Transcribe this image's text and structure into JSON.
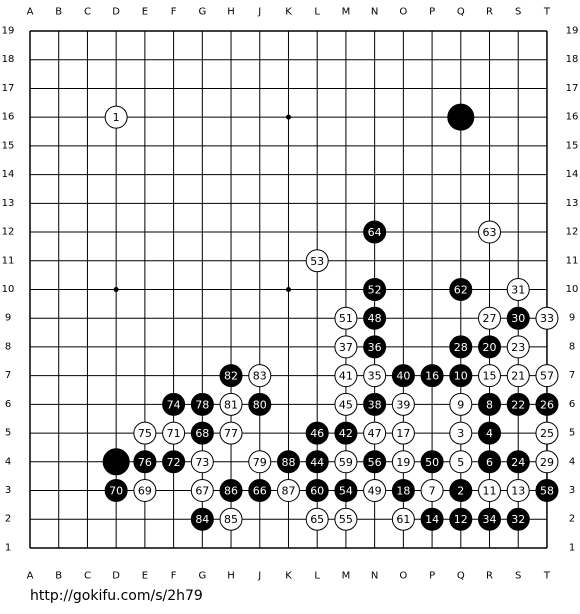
{
  "board": {
    "columns": [
      "A",
      "B",
      "C",
      "D",
      "E",
      "F",
      "G",
      "H",
      "J",
      "K",
      "L",
      "M",
      "N",
      "O",
      "P",
      "Q",
      "R",
      "S",
      "T"
    ],
    "rows": [
      19,
      18,
      17,
      16,
      15,
      14,
      13,
      12,
      11,
      10,
      9,
      8,
      7,
      6,
      5,
      4,
      3,
      2,
      1
    ],
    "stones": [
      {
        "col": "D",
        "row": 16,
        "color": "white",
        "label": "1"
      },
      {
        "col": "Q",
        "row": 16,
        "color": "black"
      },
      {
        "col": "N",
        "row": 12,
        "color": "black",
        "label": "64"
      },
      {
        "col": "R",
        "row": 12,
        "color": "white",
        "label": "63"
      },
      {
        "col": "L",
        "row": 11,
        "color": "white",
        "label": "53"
      },
      {
        "col": "N",
        "row": 10,
        "color": "black",
        "label": "52"
      },
      {
        "col": "Q",
        "row": 10,
        "color": "black",
        "label": "62"
      },
      {
        "col": "S",
        "row": 10,
        "color": "white",
        "label": "31"
      },
      {
        "col": "M",
        "row": 9,
        "color": "white",
        "label": "51"
      },
      {
        "col": "N",
        "row": 9,
        "color": "black",
        "label": "48"
      },
      {
        "col": "R",
        "row": 9,
        "color": "white",
        "label": "27"
      },
      {
        "col": "S",
        "row": 9,
        "color": "black",
        "label": "30"
      },
      {
        "col": "T",
        "row": 9,
        "color": "white",
        "label": "33"
      },
      {
        "col": "M",
        "row": 8,
        "color": "white",
        "label": "37"
      },
      {
        "col": "N",
        "row": 8,
        "color": "black",
        "label": "36"
      },
      {
        "col": "Q",
        "row": 8,
        "color": "black",
        "label": "28"
      },
      {
        "col": "R",
        "row": 8,
        "color": "black",
        "label": "20"
      },
      {
        "col": "S",
        "row": 8,
        "color": "white",
        "label": "23"
      },
      {
        "col": "H",
        "row": 7,
        "color": "black",
        "label": "82"
      },
      {
        "col": "J",
        "row": 7,
        "color": "white",
        "label": "83"
      },
      {
        "col": "M",
        "row": 7,
        "color": "white",
        "label": "41"
      },
      {
        "col": "N",
        "row": 7,
        "color": "white",
        "label": "35"
      },
      {
        "col": "O",
        "row": 7,
        "color": "black",
        "label": "40"
      },
      {
        "col": "P",
        "row": 7,
        "color": "black",
        "label": "16"
      },
      {
        "col": "Q",
        "row": 7,
        "color": "black",
        "label": "10"
      },
      {
        "col": "R",
        "row": 7,
        "color": "white",
        "label": "15"
      },
      {
        "col": "S",
        "row": 7,
        "color": "white",
        "label": "21"
      },
      {
        "col": "T",
        "row": 7,
        "color": "white",
        "label": "57"
      },
      {
        "col": "F",
        "row": 6,
        "color": "black",
        "label": "74"
      },
      {
        "col": "G",
        "row": 6,
        "color": "black",
        "label": "78"
      },
      {
        "col": "H",
        "row": 6,
        "color": "white",
        "label": "81"
      },
      {
        "col": "J",
        "row": 6,
        "color": "black",
        "label": "80"
      },
      {
        "col": "M",
        "row": 6,
        "color": "white",
        "label": "45"
      },
      {
        "col": "N",
        "row": 6,
        "color": "black",
        "label": "38"
      },
      {
        "col": "O",
        "row": 6,
        "color": "white",
        "label": "39"
      },
      {
        "col": "Q",
        "row": 6,
        "color": "white",
        "label": "9"
      },
      {
        "col": "R",
        "row": 6,
        "color": "black",
        "label": "8"
      },
      {
        "col": "S",
        "row": 6,
        "color": "black",
        "label": "22"
      },
      {
        "col": "T",
        "row": 6,
        "color": "black",
        "label": "26"
      },
      {
        "col": "E",
        "row": 5,
        "color": "white",
        "label": "75"
      },
      {
        "col": "F",
        "row": 5,
        "color": "white",
        "label": "71"
      },
      {
        "col": "G",
        "row": 5,
        "color": "black",
        "label": "68"
      },
      {
        "col": "H",
        "row": 5,
        "color": "white",
        "label": "77"
      },
      {
        "col": "L",
        "row": 5,
        "color": "black",
        "label": "46"
      },
      {
        "col": "M",
        "row": 5,
        "color": "black",
        "label": "42"
      },
      {
        "col": "N",
        "row": 5,
        "color": "white",
        "label": "47"
      },
      {
        "col": "O",
        "row": 5,
        "color": "white",
        "label": "17"
      },
      {
        "col": "Q",
        "row": 5,
        "color": "white",
        "label": "3"
      },
      {
        "col": "R",
        "row": 5,
        "color": "black",
        "label": "4"
      },
      {
        "col": "T",
        "row": 5,
        "color": "white",
        "label": "25"
      },
      {
        "col": "D",
        "row": 4,
        "color": "black"
      },
      {
        "col": "E",
        "row": 4,
        "color": "black",
        "label": "76"
      },
      {
        "col": "F",
        "row": 4,
        "color": "black",
        "label": "72"
      },
      {
        "col": "G",
        "row": 4,
        "color": "white",
        "label": "73"
      },
      {
        "col": "J",
        "row": 4,
        "color": "white",
        "label": "79"
      },
      {
        "col": "K",
        "row": 4,
        "color": "black",
        "label": "88"
      },
      {
        "col": "L",
        "row": 4,
        "color": "black",
        "label": "44"
      },
      {
        "col": "M",
        "row": 4,
        "color": "white",
        "label": "59"
      },
      {
        "col": "N",
        "row": 4,
        "color": "black",
        "label": "56"
      },
      {
        "col": "O",
        "row": 4,
        "color": "white",
        "label": "19"
      },
      {
        "col": "P",
        "row": 4,
        "color": "black",
        "label": "50"
      },
      {
        "col": "Q",
        "row": 4,
        "color": "white",
        "label": "5"
      },
      {
        "col": "R",
        "row": 4,
        "color": "black",
        "label": "6"
      },
      {
        "col": "S",
        "row": 4,
        "color": "black",
        "label": "24"
      },
      {
        "col": "T",
        "row": 4,
        "color": "white",
        "label": "29"
      },
      {
        "col": "D",
        "row": 3,
        "color": "black",
        "label": "70"
      },
      {
        "col": "E",
        "row": 3,
        "color": "white",
        "label": "69"
      },
      {
        "col": "G",
        "row": 3,
        "color": "white",
        "label": "67"
      },
      {
        "col": "H",
        "row": 3,
        "color": "black",
        "label": "86"
      },
      {
        "col": "J",
        "row": 3,
        "color": "black",
        "label": "66"
      },
      {
        "col": "K",
        "row": 3,
        "color": "white",
        "label": "87"
      },
      {
        "col": "L",
        "row": 3,
        "color": "black",
        "label": "60"
      },
      {
        "col": "M",
        "row": 3,
        "color": "black",
        "label": "54"
      },
      {
        "col": "N",
        "row": 3,
        "color": "white",
        "label": "49"
      },
      {
        "col": "O",
        "row": 3,
        "color": "black",
        "label": "18"
      },
      {
        "col": "P",
        "row": 3,
        "color": "white",
        "label": "7"
      },
      {
        "col": "Q",
        "row": 3,
        "color": "black",
        "label": "2"
      },
      {
        "col": "R",
        "row": 3,
        "color": "white",
        "label": "11"
      },
      {
        "col": "S",
        "row": 3,
        "color": "white",
        "label": "13"
      },
      {
        "col": "T",
        "row": 3,
        "color": "black",
        "label": "58"
      },
      {
        "col": "G",
        "row": 2,
        "color": "black",
        "label": "84"
      },
      {
        "col": "H",
        "row": 2,
        "color": "white",
        "label": "85"
      },
      {
        "col": "L",
        "row": 2,
        "color": "white",
        "label": "65"
      },
      {
        "col": "M",
        "row": 2,
        "color": "white",
        "label": "55"
      },
      {
        "col": "O",
        "row": 2,
        "color": "white",
        "label": "61"
      },
      {
        "col": "P",
        "row": 2,
        "color": "black",
        "label": "14"
      },
      {
        "col": "Q",
        "row": 2,
        "color": "black",
        "label": "12"
      },
      {
        "col": "R",
        "row": 2,
        "color": "black",
        "label": "34"
      },
      {
        "col": "S",
        "row": 2,
        "color": "black",
        "label": "32"
      }
    ]
  },
  "footer": {
    "url": "http://gokifu.com/s/2h79"
  }
}
